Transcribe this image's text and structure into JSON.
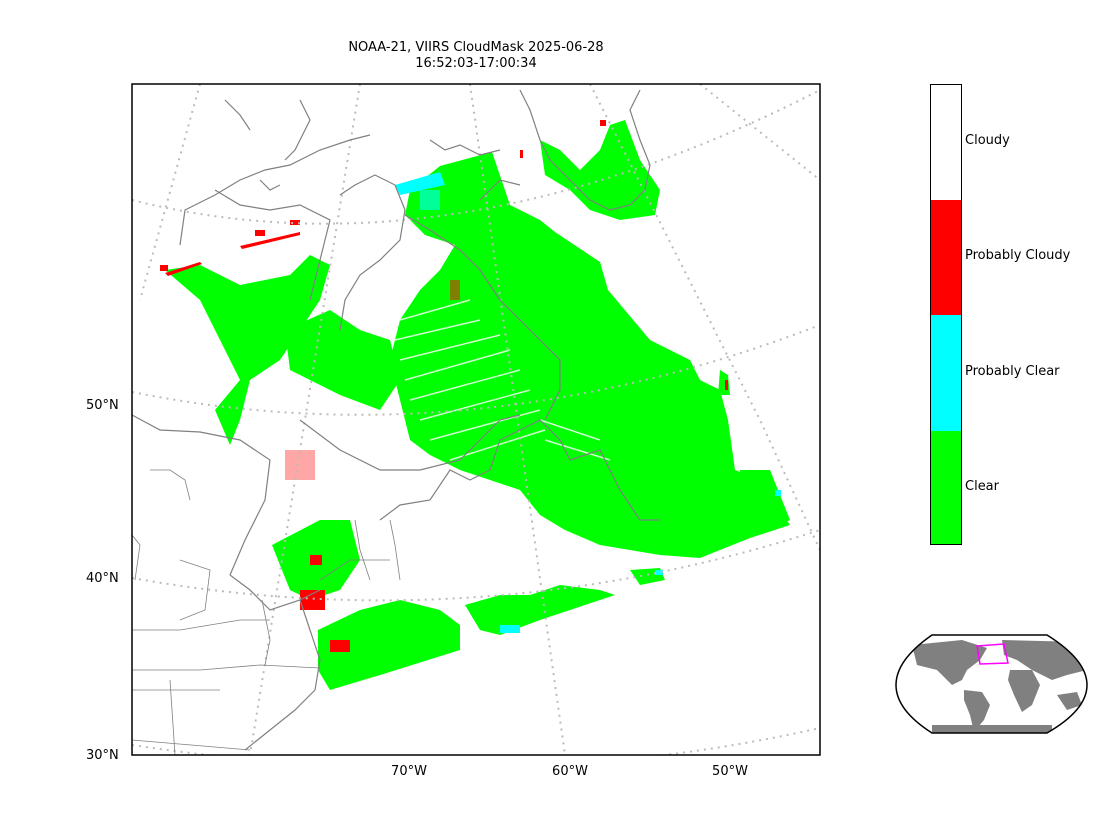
{
  "title_line1": "NOAA-21, VIIRS CloudMask 2025-06-28",
  "title_line2": "16:52:03-17:00:34",
  "lat_labels": [
    "50°N",
    "40°N",
    "30°N"
  ],
  "lon_labels": [
    "70°W",
    "60°W",
    "50°W"
  ],
  "legend": [
    {
      "label": "Cloudy",
      "color": "#ffffff"
    },
    {
      "label": "Probably Cloudy",
      "color": "#ff0000"
    },
    {
      "label": "Probably Clear",
      "color": "#00ffff"
    },
    {
      "label": "Clear",
      "color": "#00ff00"
    }
  ],
  "colors": {
    "clear": "#00ff00",
    "probably_clear": "#00ffff",
    "probably_cloudy": "#ff0000",
    "coastline": "#808080",
    "graticule": "#bbbbbb",
    "inset_land": "#808080",
    "inset_box": "#ff00ff"
  }
}
